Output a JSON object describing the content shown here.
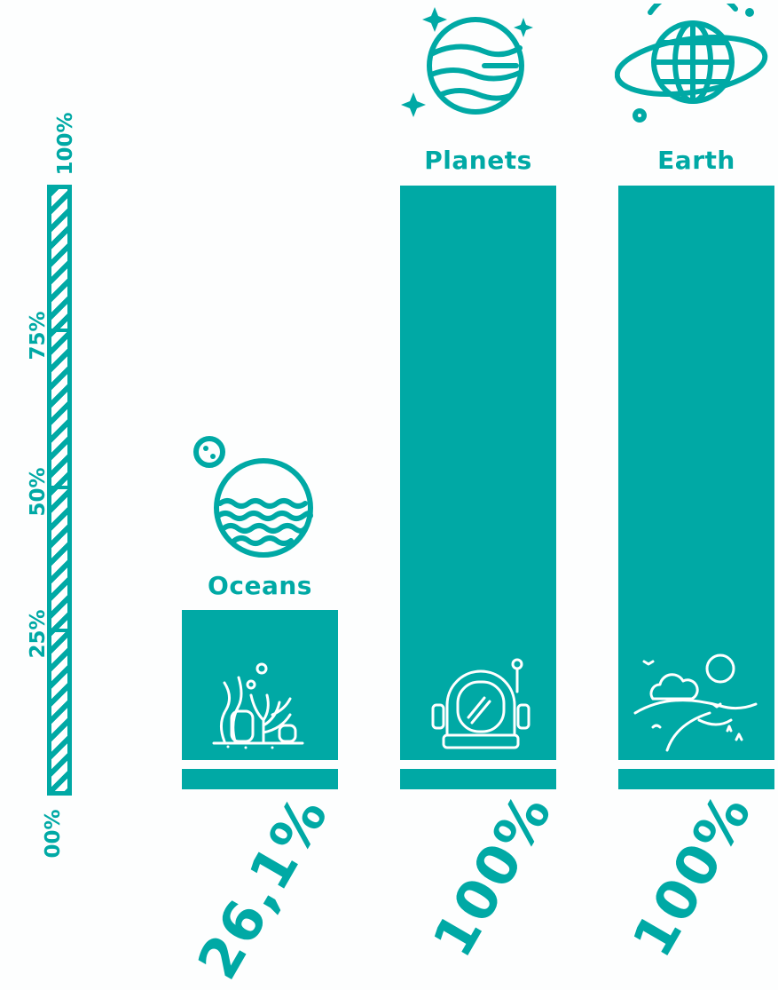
{
  "chart_data": {
    "type": "bar",
    "categories": [
      "Oceans",
      "Planets",
      "Earth"
    ],
    "values": [
      26.1,
      100,
      100
    ],
    "value_labels": [
      "26,1%",
      "100%",
      "100%"
    ],
    "ylim": [
      0,
      100
    ],
    "scale_ticks": [
      "00%",
      "25%",
      "50%",
      "75%",
      "100%"
    ],
    "icons": {
      "above_bars": [
        "ocean-globe-icon",
        "planet-icon",
        "earth-globe-icon"
      ],
      "inside_bars": [
        "coral-reef-icon",
        "astronaut-helmet-icon",
        "landscape-icon"
      ]
    },
    "colors": {
      "bar": "#00a9a5",
      "background": "#fdfefe"
    }
  }
}
